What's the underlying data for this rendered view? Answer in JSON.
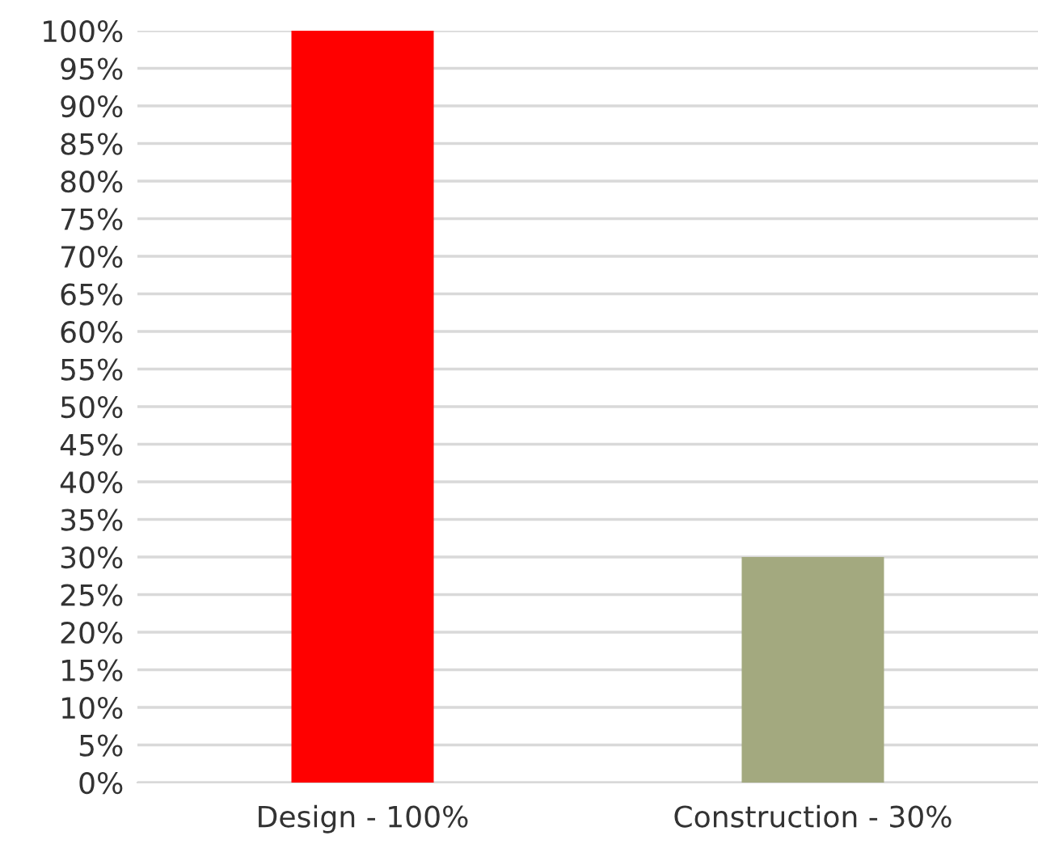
{
  "chart_data": {
    "type": "bar",
    "categories": [
      "Design - 100%",
      "Construction - 30%"
    ],
    "values": [
      100,
      30
    ],
    "colors": [
      "#ff0000",
      "#a3a97f"
    ],
    "ylim": [
      0,
      100
    ],
    "yticks": [
      {
        "value": 0,
        "label": "0%"
      },
      {
        "value": 5,
        "label": "5%"
      },
      {
        "value": 10,
        "label": "10%"
      },
      {
        "value": 15,
        "label": "15%"
      },
      {
        "value": 20,
        "label": "20%"
      },
      {
        "value": 25,
        "label": "25%"
      },
      {
        "value": 30,
        "label": "30%"
      },
      {
        "value": 35,
        "label": "35%"
      },
      {
        "value": 40,
        "label": "40%"
      },
      {
        "value": 45,
        "label": "45%"
      },
      {
        "value": 50,
        "label": "50%"
      },
      {
        "value": 55,
        "label": "55%"
      },
      {
        "value": 60,
        "label": "60%"
      },
      {
        "value": 65,
        "label": "65%"
      },
      {
        "value": 70,
        "label": "70%"
      },
      {
        "value": 75,
        "label": "75%"
      },
      {
        "value": 80,
        "label": "80%"
      },
      {
        "value": 85,
        "label": "85%"
      },
      {
        "value": 90,
        "label": "90%"
      },
      {
        "value": 95,
        "label": "95%"
      },
      {
        "value": 100,
        "label": "100%"
      }
    ],
    "grid": "y"
  }
}
